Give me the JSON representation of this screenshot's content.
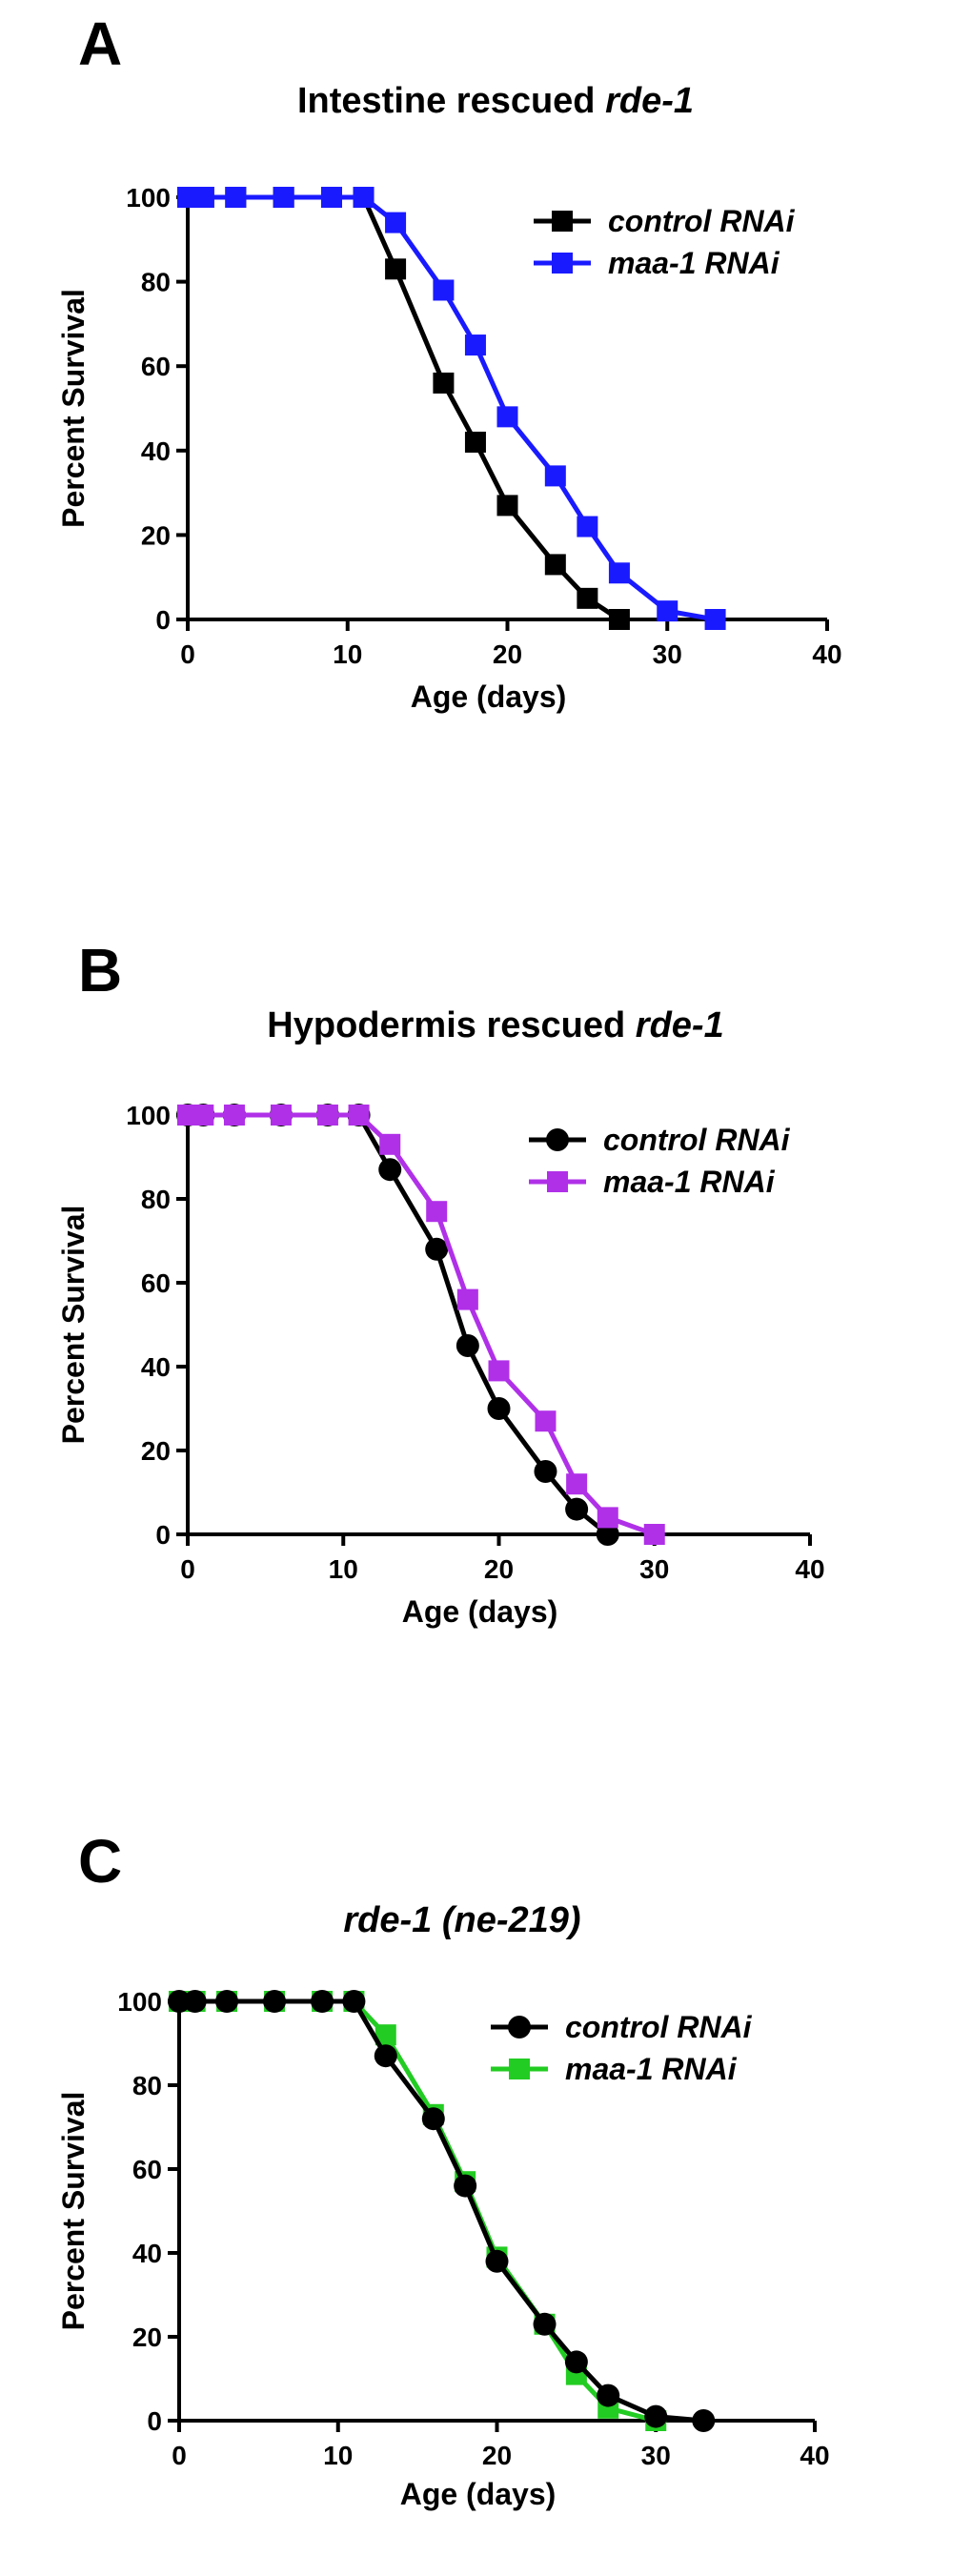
{
  "chart_data": [
    {
      "panel_label": "A",
      "title_plain": "Intestine rescued ",
      "title_italic": "rde-1",
      "type": "line",
      "xlabel": "Age (days)",
      "ylabel": "Percent Survival",
      "xlim": [
        0,
        40
      ],
      "ylim": [
        0,
        100
      ],
      "xticks": [
        0,
        10,
        20,
        30,
        40
      ],
      "yticks": [
        0,
        20,
        40,
        60,
        80,
        100
      ],
      "legend_position": "top-right",
      "series": [
        {
          "name": "control RNAi",
          "color": "#000000",
          "marker": "square",
          "x": [
            0,
            1,
            3,
            6,
            9,
            11,
            13,
            16,
            18,
            20,
            23,
            25,
            27
          ],
          "y": [
            100,
            100,
            100,
            100,
            100,
            100,
            83,
            56,
            42,
            27,
            13,
            5,
            0
          ]
        },
        {
          "name": "maa-1 RNAi",
          "color": "#1a1aff",
          "marker": "square",
          "x": [
            0,
            1,
            3,
            6,
            9,
            11,
            13,
            16,
            18,
            20,
            23,
            25,
            27,
            30,
            33
          ],
          "y": [
            100,
            100,
            100,
            100,
            100,
            100,
            94,
            78,
            65,
            48,
            34,
            22,
            11,
            2,
            0
          ]
        }
      ]
    },
    {
      "panel_label": "B",
      "title_plain": "Hypodermis rescued ",
      "title_italic": "rde-1",
      "type": "line",
      "xlabel": "Age (days)",
      "ylabel": "Percent Survival",
      "xlim": [
        0,
        40
      ],
      "ylim": [
        0,
        100
      ],
      "xticks": [
        0,
        10,
        20,
        30,
        40
      ],
      "yticks": [
        0,
        20,
        40,
        60,
        80,
        100
      ],
      "legend_position": "top-right",
      "series": [
        {
          "name": "control RNAi",
          "color": "#000000",
          "marker": "circle",
          "x": [
            0,
            1,
            3,
            6,
            9,
            11,
            13,
            16,
            18,
            20,
            23,
            25,
            27
          ],
          "y": [
            100,
            100,
            100,
            100,
            100,
            100,
            87,
            68,
            45,
            30,
            15,
            6,
            0
          ]
        },
        {
          "name": "maa-1 RNAi",
          "color": "#b030e8",
          "marker": "square",
          "x": [
            0,
            1,
            3,
            6,
            9,
            11,
            13,
            16,
            18,
            20,
            23,
            25,
            27,
            30
          ],
          "y": [
            100,
            100,
            100,
            100,
            100,
            100,
            93,
            77,
            56,
            39,
            27,
            12,
            4,
            0
          ]
        }
      ]
    },
    {
      "panel_label": "C",
      "title_plain": "",
      "title_italic": "rde-1 (ne-219)",
      "type": "line",
      "xlabel": "Age (days)",
      "ylabel": "Percent Survival",
      "xlim": [
        0,
        40
      ],
      "ylim": [
        0,
        100
      ],
      "xticks": [
        0,
        10,
        20,
        30,
        40
      ],
      "yticks": [
        0,
        20,
        40,
        60,
        80,
        100
      ],
      "legend_position": "top-right",
      "series": [
        {
          "name": "maa-1 RNAi",
          "color": "#22cc22",
          "marker": "square",
          "x": [
            0,
            1,
            3,
            6,
            9,
            11,
            13,
            16,
            18,
            20,
            23,
            25,
            27,
            30
          ],
          "y": [
            100,
            100,
            100,
            100,
            100,
            100,
            92,
            73,
            57,
            39,
            23,
            11,
            3,
            0
          ]
        },
        {
          "name": "control  RNAi",
          "color": "#000000",
          "marker": "circle",
          "x": [
            0,
            1,
            3,
            6,
            9,
            11,
            13,
            16,
            18,
            20,
            23,
            25,
            27,
            30,
            33
          ],
          "y": [
            100,
            100,
            100,
            100,
            100,
            100,
            87,
            72,
            56,
            38,
            23,
            14,
            6,
            1,
            0
          ]
        }
      ]
    }
  ]
}
